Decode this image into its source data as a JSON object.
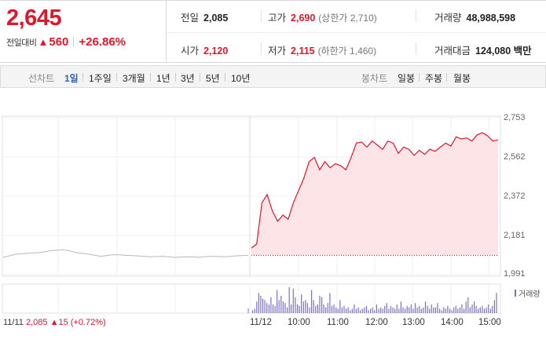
{
  "quote": {
    "price": "2,645",
    "change_label": "전일대비",
    "change_arrow": "▲",
    "change_value": "560",
    "change_percent": "+26.86%",
    "color_up": "#e0162b"
  },
  "stats": {
    "prev_close_label": "전일",
    "prev_close": "2,085",
    "high_label": "고가",
    "high": "2,690",
    "upper_limit": "(상한가 2,710)",
    "volume_label": "거래량",
    "volume": "48,988,598",
    "open_label": "시가",
    "open": "2,120",
    "low_label": "저가",
    "low": "2,115",
    "lower_limit": "(하한가 1,460)",
    "trade_value_label": "거래대금",
    "trade_value": "124,080 백만"
  },
  "tabs": {
    "line_chart_label": "선차트",
    "line_periods": [
      "1일",
      "1주일",
      "3개월",
      "1년",
      "3년",
      "5년",
      "10년"
    ],
    "active_period": "1일",
    "candle_chart_label": "봉차트",
    "candle_periods": [
      "일봉",
      "주봉",
      "월봉"
    ]
  },
  "chart_data": {
    "type": "line",
    "title": "",
    "price_axis_labels": [
      "2,753",
      "2,562",
      "2,372",
      "2,181",
      "1,991"
    ],
    "ylim": [
      1991,
      2753
    ],
    "prev_close_reference": 2085,
    "time_labels": [
      "11/11",
      "11/12",
      "10:00",
      "11:00",
      "12:00",
      "13:00",
      "14:00",
      "15:00"
    ],
    "prev_day_info": {
      "date": "11/11",
      "close": "2,085",
      "change": "▲15 (+0.72%)"
    },
    "volume_legend": "거래량",
    "prev_day_series": {
      "x": [
        0,
        0.05,
        0.1,
        0.15,
        0.2,
        0.25,
        0.3,
        0.35,
        0.4,
        0.45,
        0.5,
        0.55,
        0.6,
        0.65,
        0.7,
        0.75,
        0.8,
        0.85,
        0.9,
        0.95,
        1.0
      ],
      "y": [
        2075,
        2090,
        2095,
        2098,
        2108,
        2112,
        2098,
        2090,
        2080,
        2088,
        2085,
        2082,
        2078,
        2080,
        2075,
        2078,
        2076,
        2080,
        2078,
        2082,
        2085
      ]
    },
    "today_series": {
      "times": [
        "09:00",
        "09:05",
        "09:10",
        "09:15",
        "09:20",
        "09:25",
        "09:30",
        "09:35",
        "09:40",
        "09:45",
        "09:50",
        "09:55",
        "10:00",
        "10:05",
        "10:10",
        "10:15",
        "10:20",
        "10:25",
        "10:30",
        "10:40",
        "10:50",
        "11:00",
        "11:10",
        "11:20",
        "11:30",
        "11:40",
        "11:50",
        "12:00",
        "12:10",
        "12:20",
        "12:30",
        "12:40",
        "12:50",
        "13:00",
        "13:10",
        "13:20",
        "13:30",
        "13:40",
        "13:50",
        "14:00",
        "14:10",
        "14:20",
        "14:30",
        "14:40",
        "14:50",
        "15:00",
        "15:10",
        "15:20"
      ],
      "y": [
        2120,
        2140,
        2340,
        2380,
        2300,
        2250,
        2280,
        2260,
        2340,
        2400,
        2460,
        2540,
        2560,
        2500,
        2540,
        2510,
        2530,
        2520,
        2500,
        2560,
        2630,
        2635,
        2610,
        2640,
        2620,
        2600,
        2640,
        2630,
        2580,
        2610,
        2600,
        2570,
        2595,
        2575,
        2600,
        2590,
        2610,
        2630,
        2615,
        2660,
        2650,
        2655,
        2640,
        2670,
        2680,
        2665,
        2640,
        2645
      ]
    },
    "volume_bars": [
      2,
      3,
      8,
      14,
      12,
      10,
      9,
      7,
      6,
      11,
      6,
      5,
      16,
      9,
      12,
      8,
      7,
      4,
      18,
      6,
      17,
      11,
      6,
      5,
      13,
      8,
      9,
      7,
      4,
      16,
      9,
      5,
      6,
      12,
      11,
      6,
      4,
      7,
      14,
      5,
      6,
      4,
      3,
      9,
      4,
      5,
      3,
      4,
      2,
      3,
      6,
      3,
      4,
      2,
      3,
      4,
      5,
      2,
      3,
      4,
      2,
      6,
      3,
      4,
      3,
      5,
      7,
      3,
      5,
      4,
      3,
      6,
      3,
      8,
      4,
      3,
      5,
      4,
      6,
      3,
      7,
      4,
      5,
      3,
      4,
      8,
      5,
      3,
      6,
      4,
      4,
      7,
      3,
      2,
      4,
      3,
      5,
      3,
      2,
      4,
      5,
      3,
      4,
      6,
      3,
      8,
      11,
      4,
      6,
      8,
      5,
      3,
      4,
      5,
      3,
      4,
      6,
      3,
      5,
      9,
      14
    ]
  }
}
